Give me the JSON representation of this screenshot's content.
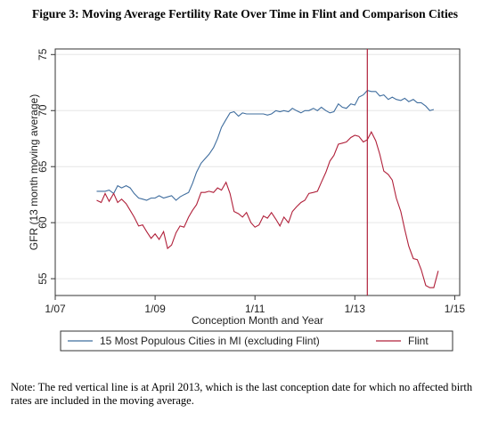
{
  "title": "Figure 3: Moving Average Fertility Rate Over Time in Flint and Comparison Cities",
  "note": "Note: The red vertical line is at April 2013, which is the last conception date for which no affected birth rates are included in the moving average.",
  "chart_data": {
    "type": "line",
    "xlabel": "Conception Month and Year",
    "ylabel": "GFR (13 month moving average)",
    "xlim": [
      2007.0,
      2015.1
    ],
    "ylim": [
      53.5,
      75.5
    ],
    "x_ticks": [
      2007,
      2009,
      2011,
      2013,
      2015
    ],
    "x_tick_labels": [
      "1/07",
      "1/09",
      "1/11",
      "1/13",
      "1/15"
    ],
    "y_ticks": [
      55,
      60,
      65,
      70,
      75
    ],
    "y_tick_labels": [
      "55",
      "60",
      "65",
      "70",
      "75"
    ],
    "vline": {
      "x": 2013.25,
      "color": "#b0203a"
    },
    "legend_placement": "bottom",
    "grid": true,
    "series": [
      {
        "name": "15 Most Populous Cities in MI (excluding Flint)",
        "color": "#3f6d9e",
        "points": [
          [
            2007.83,
            62.8
          ],
          [
            2007.92,
            62.8
          ],
          [
            2008.0,
            62.8
          ],
          [
            2008.08,
            62.9
          ],
          [
            2008.17,
            62.6
          ],
          [
            2008.25,
            63.3
          ],
          [
            2008.33,
            63.1
          ],
          [
            2008.42,
            63.3
          ],
          [
            2008.5,
            63.1
          ],
          [
            2008.58,
            62.6
          ],
          [
            2008.67,
            62.2
          ],
          [
            2008.75,
            62.1
          ],
          [
            2008.83,
            62.0
          ],
          [
            2008.92,
            62.2
          ],
          [
            2009.0,
            62.2
          ],
          [
            2009.08,
            62.4
          ],
          [
            2009.17,
            62.2
          ],
          [
            2009.25,
            62.3
          ],
          [
            2009.33,
            62.4
          ],
          [
            2009.42,
            62.0
          ],
          [
            2009.5,
            62.3
          ],
          [
            2009.58,
            62.5
          ],
          [
            2009.67,
            62.7
          ],
          [
            2009.75,
            63.5
          ],
          [
            2009.83,
            64.5
          ],
          [
            2009.92,
            65.3
          ],
          [
            2010.0,
            65.7
          ],
          [
            2010.08,
            66.1
          ],
          [
            2010.17,
            66.7
          ],
          [
            2010.25,
            67.5
          ],
          [
            2010.33,
            68.5
          ],
          [
            2010.42,
            69.2
          ],
          [
            2010.5,
            69.8
          ],
          [
            2010.58,
            69.9
          ],
          [
            2010.67,
            69.5
          ],
          [
            2010.75,
            69.8
          ],
          [
            2010.83,
            69.7
          ],
          [
            2010.92,
            69.7
          ],
          [
            2011.0,
            69.7
          ],
          [
            2011.08,
            69.7
          ],
          [
            2011.17,
            69.7
          ],
          [
            2011.25,
            69.6
          ],
          [
            2011.33,
            69.7
          ],
          [
            2011.42,
            70.0
          ],
          [
            2011.5,
            69.9
          ],
          [
            2011.58,
            70.0
          ],
          [
            2011.67,
            69.9
          ],
          [
            2011.75,
            70.2
          ],
          [
            2011.83,
            70.0
          ],
          [
            2011.92,
            69.8
          ],
          [
            2012.0,
            70.0
          ],
          [
            2012.08,
            70.0
          ],
          [
            2012.17,
            70.2
          ],
          [
            2012.25,
            70.0
          ],
          [
            2012.33,
            70.3
          ],
          [
            2012.42,
            70.0
          ],
          [
            2012.5,
            69.8
          ],
          [
            2012.58,
            69.9
          ],
          [
            2012.67,
            70.6
          ],
          [
            2012.75,
            70.3
          ],
          [
            2012.83,
            70.2
          ],
          [
            2012.92,
            70.6
          ],
          [
            2013.0,
            70.5
          ],
          [
            2013.08,
            71.2
          ],
          [
            2013.17,
            71.4
          ],
          [
            2013.25,
            71.8
          ],
          [
            2013.33,
            71.7
          ],
          [
            2013.42,
            71.7
          ],
          [
            2013.5,
            71.3
          ],
          [
            2013.58,
            71.4
          ],
          [
            2013.67,
            71.0
          ],
          [
            2013.75,
            71.2
          ],
          [
            2013.83,
            71.0
          ],
          [
            2013.92,
            70.9
          ],
          [
            2014.0,
            71.1
          ],
          [
            2014.08,
            70.8
          ],
          [
            2014.17,
            71.0
          ],
          [
            2014.25,
            70.7
          ],
          [
            2014.33,
            70.7
          ],
          [
            2014.42,
            70.4
          ],
          [
            2014.5,
            70.0
          ],
          [
            2014.58,
            70.1
          ]
        ]
      },
      {
        "name": "Flint",
        "color": "#b0203a",
        "points": [
          [
            2007.83,
            62.0
          ],
          [
            2007.92,
            61.8
          ],
          [
            2008.0,
            62.6
          ],
          [
            2008.08,
            61.9
          ],
          [
            2008.17,
            62.6
          ],
          [
            2008.25,
            61.8
          ],
          [
            2008.33,
            62.1
          ],
          [
            2008.42,
            61.7
          ],
          [
            2008.5,
            61.1
          ],
          [
            2008.58,
            60.5
          ],
          [
            2008.67,
            59.7
          ],
          [
            2008.75,
            59.8
          ],
          [
            2008.83,
            59.2
          ],
          [
            2008.92,
            58.6
          ],
          [
            2009.0,
            59.0
          ],
          [
            2009.08,
            58.5
          ],
          [
            2009.17,
            59.2
          ],
          [
            2009.25,
            57.7
          ],
          [
            2009.33,
            58.0
          ],
          [
            2009.42,
            59.1
          ],
          [
            2009.5,
            59.7
          ],
          [
            2009.58,
            59.6
          ],
          [
            2009.67,
            60.5
          ],
          [
            2009.75,
            61.1
          ],
          [
            2009.83,
            61.6
          ],
          [
            2009.92,
            62.7
          ],
          [
            2010.0,
            62.7
          ],
          [
            2010.08,
            62.8
          ],
          [
            2010.17,
            62.7
          ],
          [
            2010.25,
            63.1
          ],
          [
            2010.33,
            62.9
          ],
          [
            2010.42,
            63.6
          ],
          [
            2010.5,
            62.6
          ],
          [
            2010.58,
            61.0
          ],
          [
            2010.67,
            60.8
          ],
          [
            2010.75,
            60.5
          ],
          [
            2010.83,
            60.9
          ],
          [
            2010.92,
            60.0
          ],
          [
            2011.0,
            59.6
          ],
          [
            2011.08,
            59.8
          ],
          [
            2011.17,
            60.6
          ],
          [
            2011.25,
            60.4
          ],
          [
            2011.33,
            60.9
          ],
          [
            2011.42,
            60.3
          ],
          [
            2011.5,
            59.7
          ],
          [
            2011.58,
            60.5
          ],
          [
            2011.67,
            60.0
          ],
          [
            2011.75,
            61.0
          ],
          [
            2011.83,
            61.4
          ],
          [
            2011.92,
            61.8
          ],
          [
            2012.0,
            62.0
          ],
          [
            2012.08,
            62.6
          ],
          [
            2012.17,
            62.7
          ],
          [
            2012.25,
            62.8
          ],
          [
            2012.33,
            63.6
          ],
          [
            2012.42,
            64.5
          ],
          [
            2012.5,
            65.5
          ],
          [
            2012.58,
            66.0
          ],
          [
            2012.67,
            67.0
          ],
          [
            2012.75,
            67.1
          ],
          [
            2012.83,
            67.2
          ],
          [
            2012.92,
            67.6
          ],
          [
            2013.0,
            67.8
          ],
          [
            2013.08,
            67.7
          ],
          [
            2013.17,
            67.2
          ],
          [
            2013.25,
            67.4
          ],
          [
            2013.33,
            68.1
          ],
          [
            2013.42,
            67.3
          ],
          [
            2013.5,
            66.1
          ],
          [
            2013.58,
            64.6
          ],
          [
            2013.67,
            64.3
          ],
          [
            2013.75,
            63.8
          ],
          [
            2013.83,
            62.2
          ],
          [
            2013.92,
            61.0
          ],
          [
            2014.0,
            59.4
          ],
          [
            2014.08,
            57.9
          ],
          [
            2014.17,
            56.8
          ],
          [
            2014.25,
            56.7
          ],
          [
            2014.33,
            55.8
          ],
          [
            2014.42,
            54.4
          ],
          [
            2014.5,
            54.2
          ],
          [
            2014.58,
            54.2
          ],
          [
            2014.67,
            55.7
          ]
        ]
      }
    ]
  }
}
